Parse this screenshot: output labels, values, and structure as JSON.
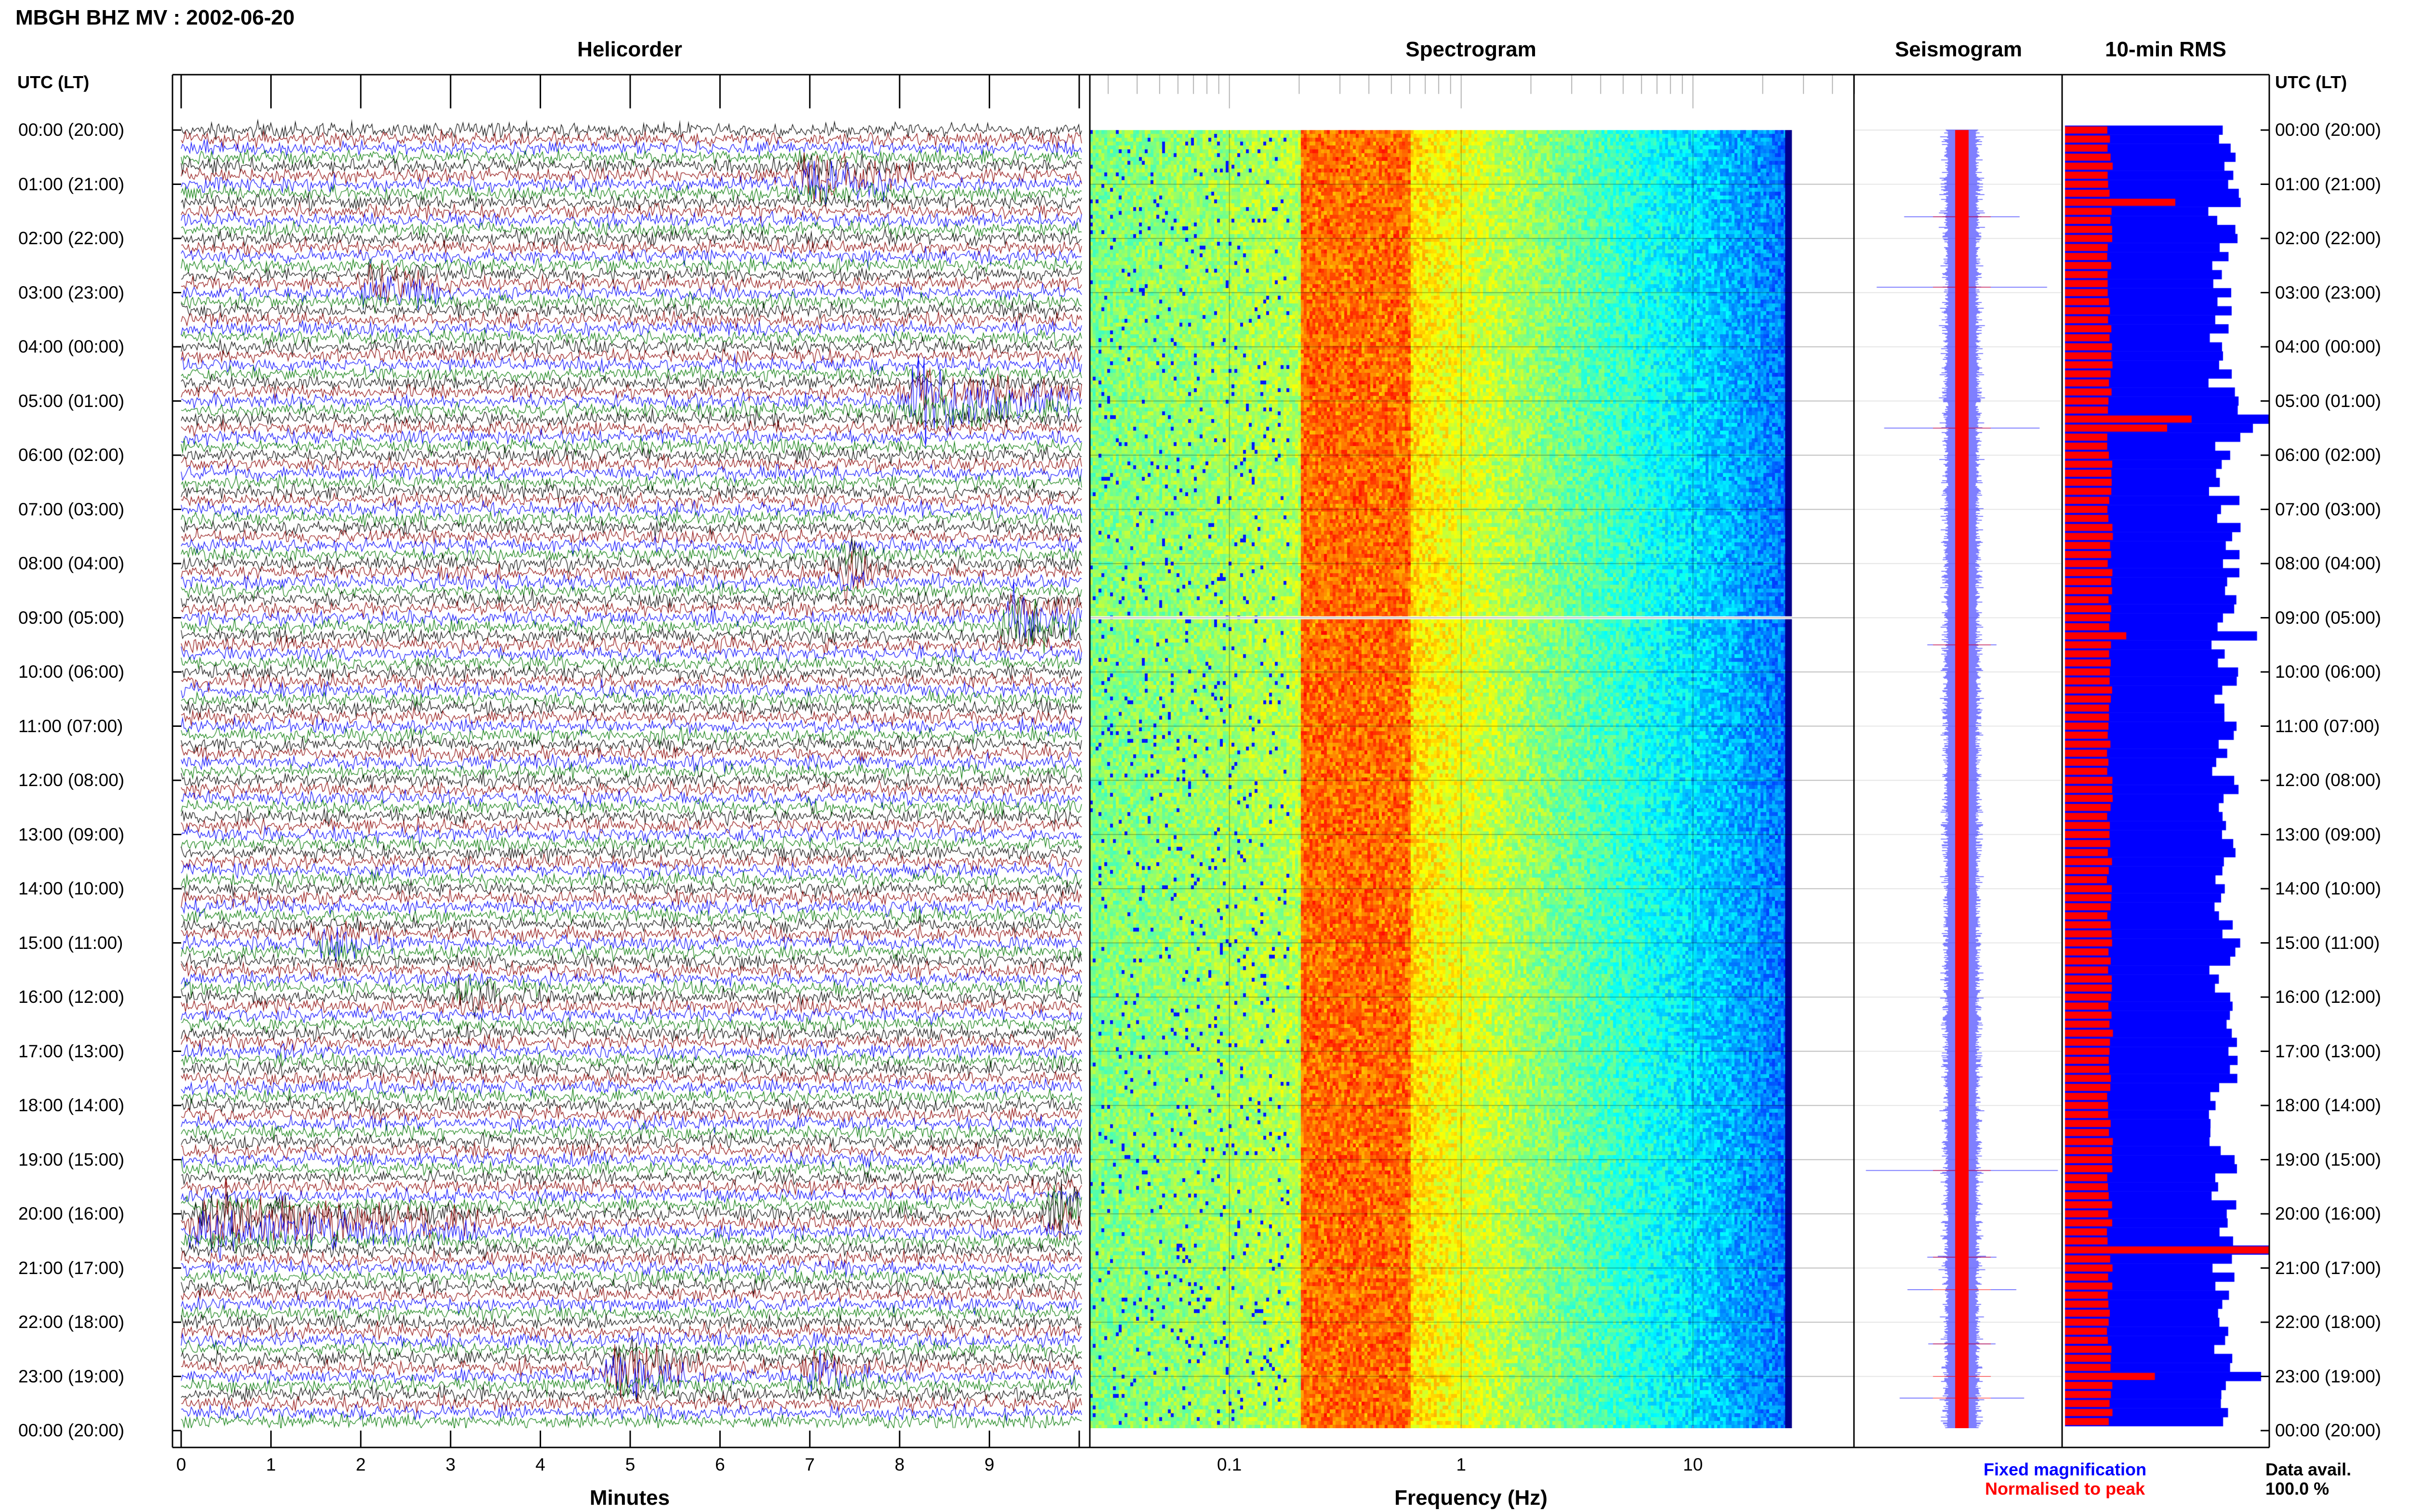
{
  "header": {
    "station_title": "MBGH BHZ MV : 2002-06-20",
    "utc_heading_left": "UTC (LT)",
    "utc_heading_right": "UTC (LT)"
  },
  "panels": {
    "helicorder": "Helicorder",
    "spectrogram": "Spectrogram",
    "seismogram": "Seismogram",
    "rms": "10-min RMS"
  },
  "time_labels": [
    "00:00 (20:00)",
    "01:00 (21:00)",
    "02:00 (22:00)",
    "03:00 (23:00)",
    "04:00 (00:00)",
    "05:00 (01:00)",
    "06:00 (02:00)",
    "07:00 (03:00)",
    "08:00 (04:00)",
    "09:00 (05:00)",
    "10:00 (06:00)",
    "11:00 (07:00)",
    "12:00 (08:00)",
    "13:00 (09:00)",
    "14:00 (10:00)",
    "15:00 (11:00)",
    "16:00 (12:00)",
    "17:00 (13:00)",
    "18:00 (14:00)",
    "19:00 (15:00)",
    "20:00 (16:00)",
    "21:00 (17:00)",
    "22:00 (18:00)",
    "23:00 (19:00)",
    "00:00 (20:00)"
  ],
  "footer": {
    "legend_fixed": "Fixed magnification",
    "legend_normalised": "Normalised to peak",
    "data_avail_label": "Data avail.",
    "data_avail_value": "100.0 %"
  },
  "colors": {
    "trace_cycle": [
      "#000000",
      "#8b0000",
      "#0000ff",
      "#007800"
    ],
    "fixed": "#0000ff",
    "normalised": "#ff0000"
  },
  "chart_data": [
    {
      "type": "line",
      "panel": "helicorder",
      "xlabel": "Minutes",
      "x_ticks": [
        "0",
        "1",
        "2",
        "3",
        "4",
        "5",
        "6",
        "7",
        "8",
        "9"
      ],
      "xlim": [
        0,
        10
      ],
      "rows_per_hour": 6,
      "hours": 24,
      "events": [
        {
          "hour": 0.9,
          "minute": 7.0,
          "amp": 0.9,
          "dur": 1.2
        },
        {
          "hour": 2.9,
          "minute": 2.2,
          "amp": 0.6,
          "dur": 0.8
        },
        {
          "hour": 5.0,
          "minute": 8.2,
          "amp": 1.0,
          "dur": 2.0
        },
        {
          "hour": 8.1,
          "minute": 7.4,
          "amp": 0.7,
          "dur": 0.5
        },
        {
          "hour": 9.1,
          "minute": 9.3,
          "amp": 1.0,
          "dur": 0.8
        },
        {
          "hour": 15.0,
          "minute": 1.6,
          "amp": 0.4,
          "dur": 0.8
        },
        {
          "hour": 16.0,
          "minute": 3.2,
          "amp": 0.4,
          "dur": 0.8
        },
        {
          "hour": 20.2,
          "minute": 0.3,
          "amp": 1.0,
          "dur": 3.0
        },
        {
          "hour": 20.0,
          "minute": 9.8,
          "amp": 1.0,
          "dur": 0.3
        },
        {
          "hour": 22.9,
          "minute": 4.9,
          "amp": 1.0,
          "dur": 1.0
        },
        {
          "hour": 23.0,
          "minute": 7.0,
          "amp": 0.5,
          "dur": 0.8
        }
      ]
    },
    {
      "type": "heatmap",
      "panel": "spectrogram",
      "xlabel": "Frequency (Hz)",
      "x_scale": "log",
      "x_ticks": [
        "0.1",
        "1",
        "10"
      ],
      "xlim": [
        0.025,
        50
      ],
      "peak_band_hz": [
        0.2,
        0.6
      ],
      "upper_cutoff_hz": 25,
      "gap_hour": 9.0
    },
    {
      "type": "line",
      "panel": "seismogram",
      "series": [
        {
          "name": "Fixed magnification"
        },
        {
          "name": "Normalised to peak"
        }
      ],
      "spikes_hour": [
        1.6,
        2.9,
        5.5,
        9.5,
        19.2,
        20.8,
        21.4,
        22.4,
        23.0,
        23.4
      ]
    },
    {
      "type": "bar",
      "panel": "rms",
      "orientation": "horizontal",
      "bins_per_hour": 6,
      "fixed_base": 0.78,
      "normalised_base": 0.22,
      "spikes": [
        {
          "bin": 8,
          "fixed": 0.86,
          "norm": 0.54
        },
        {
          "bin": 32,
          "fixed": 1.0,
          "norm": 0.62
        },
        {
          "bin": 33,
          "fixed": 0.92,
          "norm": 0.5
        },
        {
          "bin": 56,
          "fixed": 0.94,
          "norm": 0.3
        },
        {
          "bin": 124,
          "fixed": 1.0,
          "norm": 1.0
        },
        {
          "bin": 138,
          "fixed": 0.96,
          "norm": 0.44
        }
      ]
    }
  ]
}
